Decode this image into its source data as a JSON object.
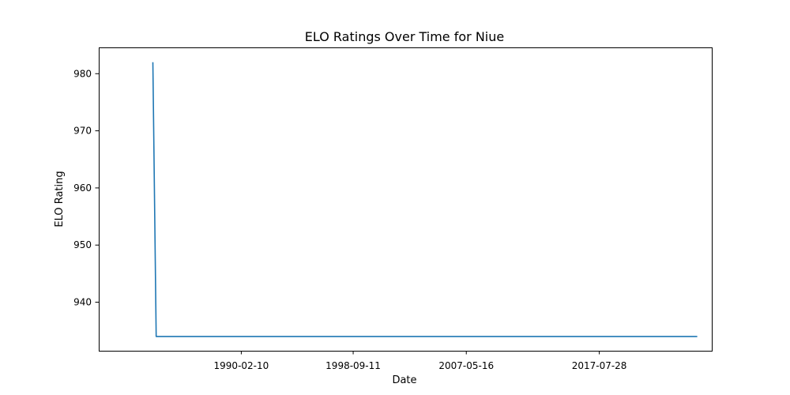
{
  "chart_data": {
    "type": "line",
    "title": "ELO Ratings Over Time for Niue",
    "xlabel": "Date",
    "ylabel": "ELO Rating",
    "x_type": "date",
    "xlim": [
      "1979-03-07",
      "2026-03-15"
    ],
    "ylim": [
      931.5,
      984.6
    ],
    "x_ticks": [
      "1990-02-10",
      "1998-09-11",
      "2007-05-16",
      "2017-07-28"
    ],
    "y_ticks": [
      940,
      950,
      960,
      970,
      980
    ],
    "grid": false,
    "legend": "none",
    "series": [
      {
        "color": "#1f77b4",
        "points": [
          {
            "x": "1983-05-01",
            "y": 982
          },
          {
            "x": "1983-08-01",
            "y": 934
          },
          {
            "x": "2025-02-01",
            "y": 934
          }
        ]
      }
    ]
  }
}
